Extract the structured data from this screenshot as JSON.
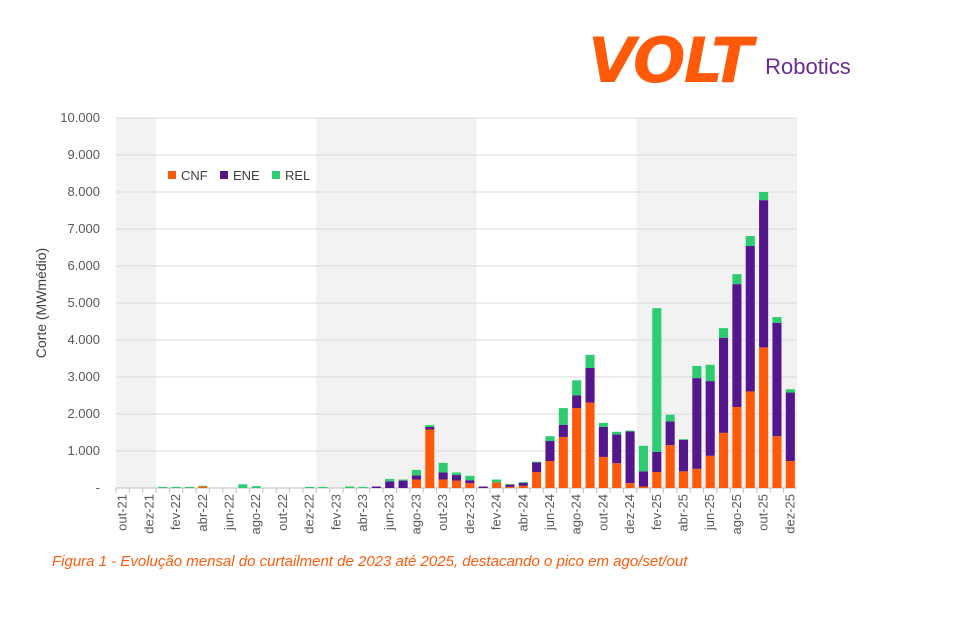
{
  "logo": {
    "brand": "VOLT",
    "sub": "Robotics"
  },
  "caption": "Figura 1 - Evolução mensal do curtailment de 2023 até 2025, destacando o pico em ago/set/out",
  "chart_data": {
    "type": "bar",
    "stacked": true,
    "title": "",
    "xlabel": "",
    "ylabel": "Corte (MWmédio)",
    "ylim": [
      0,
      10000
    ],
    "yticks": [
      0,
      1000,
      2000,
      3000,
      4000,
      5000,
      6000,
      7000,
      8000,
      9000,
      10000
    ],
    "ytick_labels": [
      "-",
      "1.000",
      "2.000",
      "3.000",
      "4.000",
      "5.000",
      "6.000",
      "7.000",
      "8.000",
      "9.000",
      "10.000"
    ],
    "legend_position": "top-left",
    "grid": true,
    "categories": [
      "out-21",
      "nov-21",
      "dez-21",
      "jan-22",
      "fev-22",
      "mar-22",
      "abr-22",
      "mai-22",
      "jun-22",
      "jul-22",
      "ago-22",
      "set-22",
      "out-22",
      "nov-22",
      "dez-22",
      "jan-23",
      "fev-23",
      "mar-23",
      "abr-23",
      "mai-23",
      "jun-23",
      "jul-23",
      "ago-23",
      "set-23",
      "out-23",
      "nov-23",
      "dez-23",
      "jan-24",
      "fev-24",
      "mar-24",
      "abr-24",
      "mai-24",
      "jun-24",
      "jul-24",
      "ago-24",
      "set-24",
      "out-24",
      "nov-24",
      "dez-24",
      "jan-25",
      "fev-25",
      "mar-25",
      "abr-25",
      "mai-25",
      "jun-25",
      "jul-25",
      "ago-25",
      "set-25",
      "out-25",
      "nov-25",
      "dez-25"
    ],
    "series": [
      {
        "name": "CNF",
        "color": "#ff5a0a",
        "values": [
          0,
          0,
          0,
          0,
          0,
          0,
          40,
          0,
          0,
          0,
          0,
          0,
          0,
          0,
          0,
          0,
          0,
          0,
          0,
          0,
          0,
          0,
          230,
          1580,
          230,
          200,
          130,
          0,
          150,
          30,
          60,
          430,
          730,
          1380,
          2160,
          2310,
          840,
          670,
          130,
          40,
          430,
          1160,
          450,
          520,
          870,
          1490,
          2190,
          2610,
          3800,
          1400,
          730
        ]
      },
      {
        "name": "ENE",
        "color": "#53168c",
        "values": [
          0,
          0,
          0,
          0,
          0,
          0,
          0,
          0,
          0,
          0,
          0,
          0,
          0,
          0,
          0,
          0,
          0,
          0,
          0,
          40,
          180,
          200,
          110,
          70,
          190,
          150,
          80,
          40,
          0,
          60,
          80,
          260,
          540,
          330,
          340,
          935,
          810,
          775,
          1400,
          410,
          550,
          640,
          850,
          2450,
          2020,
          2570,
          3320,
          3930,
          3980,
          3060,
          1850
        ]
      },
      {
        "name": "REL",
        "color": "#2ecc71",
        "values": [
          0,
          0,
          0,
          30,
          30,
          30,
          20,
          0,
          0,
          100,
          50,
          0,
          0,
          0,
          30,
          30,
          0,
          40,
          30,
          0,
          65,
          30,
          150,
          50,
          260,
          70,
          120,
          0,
          80,
          20,
          20,
          20,
          130,
          450,
          410,
          355,
          110,
          75,
          20,
          690,
          3880,
          180,
          20,
          330,
          440,
          260,
          270,
          270,
          220,
          160,
          90
        ]
      }
    ],
    "shaded_ranges": [
      [
        "out-21",
        "dez-21"
      ],
      [
        "jan-23",
        "dez-23"
      ],
      [
        "jan-25",
        "dez-25"
      ]
    ]
  }
}
